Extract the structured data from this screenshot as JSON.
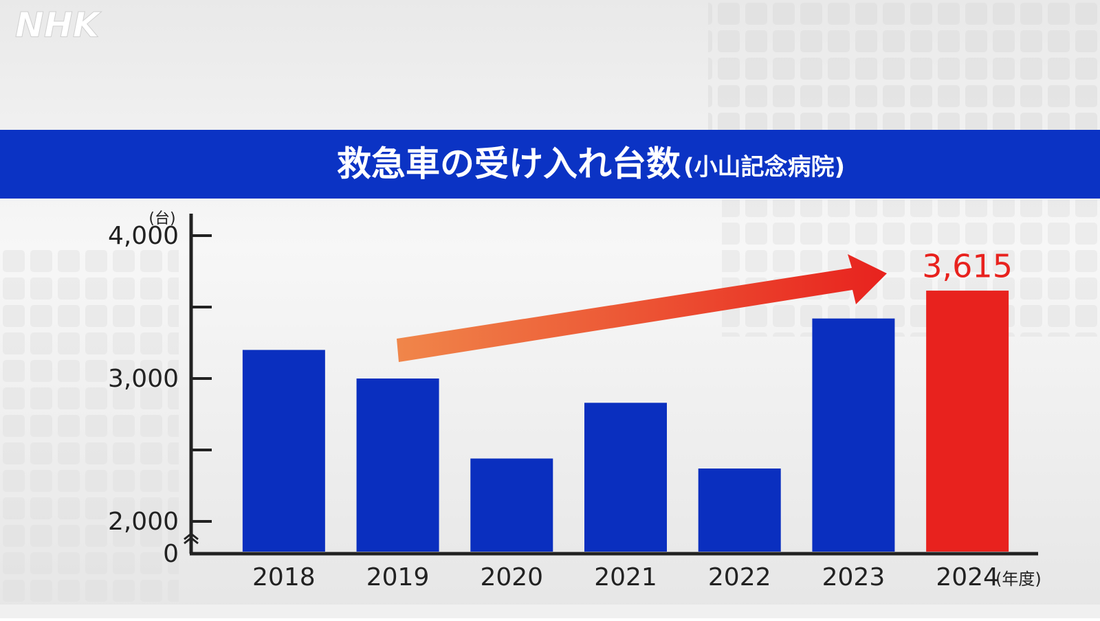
{
  "logo": "NHK",
  "chart_data": {
    "type": "bar",
    "title": "救急車の受け入れ台数",
    "subtitle": "(小山記念病院)",
    "y_unit": "(台)",
    "x_unit": "(年度)",
    "categories": [
      "2018",
      "2019",
      "2020",
      "2021",
      "2022",
      "2023",
      "2024"
    ],
    "values": [
      3200,
      3000,
      2440,
      2830,
      2370,
      3420,
      3615
    ],
    "value_labels": [
      null,
      null,
      null,
      null,
      null,
      null,
      "3,615"
    ],
    "colors": [
      "#0a2fbf",
      "#0a2fbf",
      "#0a2fbf",
      "#0a2fbf",
      "#0a2fbf",
      "#0a2fbf",
      "#e8221e"
    ],
    "ylim": [
      0,
      4000
    ],
    "axis_break": [
      0,
      2000
    ],
    "yticks": [
      {
        "value": 0,
        "label": "0"
      },
      {
        "value": 2000,
        "label": "2,000"
      },
      {
        "value": 3000,
        "label": "3,000"
      },
      {
        "value": 4000,
        "label": "4,000"
      }
    ],
    "minor_yticks": [
      2500,
      3500
    ],
    "grid": false
  }
}
